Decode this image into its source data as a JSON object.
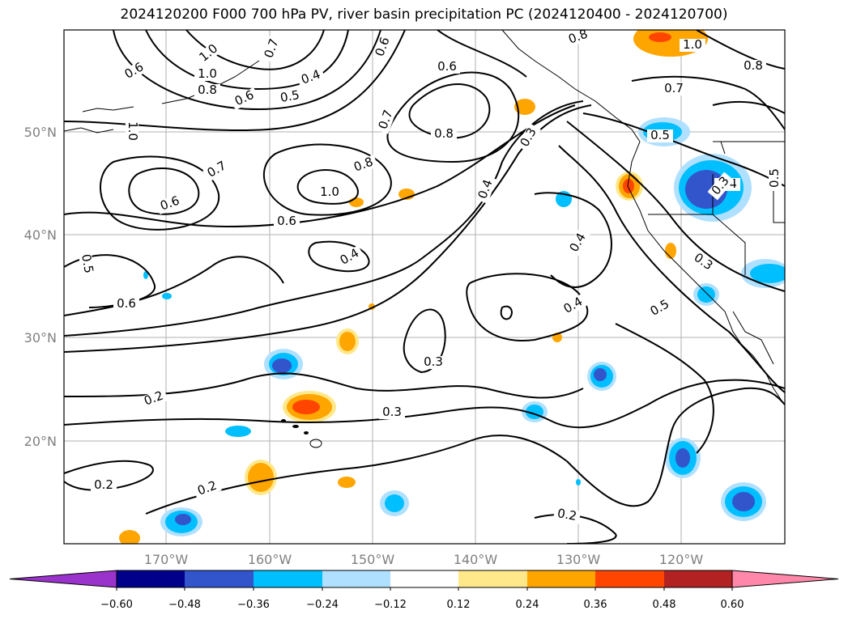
{
  "title": "2024120200 F000 700 hPa PV, river basin precipitation PC (2024120400 - 2024120700)",
  "map": {
    "projection": "lat-lon",
    "lon_range": [
      "180",
      "110°W"
    ],
    "lat_range": [
      "10°N",
      "60°N"
    ],
    "grid": true,
    "lat_labels": [
      "50°N",
      "40°N",
      "30°N",
      "20°N"
    ],
    "lon_labels": [
      "170°W",
      "160°W",
      "150°W",
      "140°W",
      "130°W",
      "120°W"
    ],
    "pv_contour_labels": [
      "1.0",
      "0.6",
      "1.0",
      "0.8",
      "0.4",
      "0.5",
      "0.6",
      "0.7",
      "0.6",
      "1.0",
      "1.0",
      "0.8",
      "0.7",
      "0.6",
      "0.7",
      "0.8",
      "0.8",
      "0.3",
      "0.5",
      "0.4",
      "0.3",
      "0.5",
      "0.6",
      "0.7",
      "0.8",
      "1.0",
      "0.6",
      "0.4",
      "0.4",
      "0.4",
      "0.5",
      "0.6",
      "0.3",
      "0.3",
      "0.4",
      "0.5",
      "0.2",
      "0.2",
      "0.2",
      "0.3",
      "0.2"
    ]
  },
  "colorbar": {
    "ticks": [
      "−0.60",
      "−0.48",
      "−0.36",
      "−0.24",
      "−0.12",
      "0.12",
      "0.24",
      "0.36",
      "0.48",
      "0.60"
    ],
    "colors": [
      "#9933cc",
      "#00008b",
      "#3355cc",
      "#00bfff",
      "#b0e0ff",
      "#ffffff",
      "#ffe88a",
      "#ffa500",
      "#ff4500",
      "#b22222",
      "#ff88aa"
    ]
  }
}
